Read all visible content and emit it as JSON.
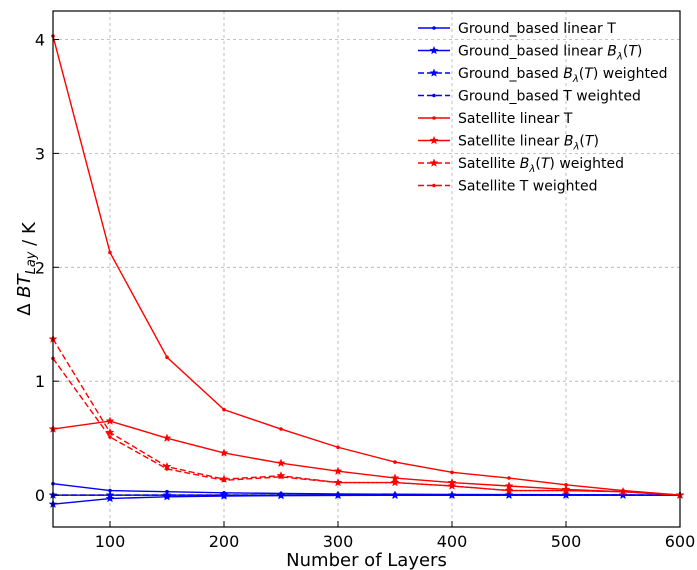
{
  "chart_data": {
    "type": "line",
    "xlabel": "Number of Layers",
    "ylabel": "Δ BT_Lay / K",
    "xlim": [
      50,
      600
    ],
    "ylim": [
      -0.28,
      4.25
    ],
    "xticks": [
      100,
      200,
      300,
      400,
      500,
      600
    ],
    "yticks": [
      0,
      1,
      2,
      3,
      4
    ],
    "grid": true,
    "zero_line": true,
    "legend_position": "top-right",
    "x": [
      50,
      100,
      150,
      200,
      250,
      300,
      350,
      400,
      450,
      500,
      550,
      600
    ],
    "series": [
      {
        "name": "Ground_based linear T",
        "color": "#0000ff",
        "dash": "solid",
        "marker": "dot",
        "values": [
          0.1,
          0.04,
          0.03,
          0.02,
          0.015,
          0.01,
          0.008,
          0.006,
          0.005,
          0.004,
          0.002,
          0.0
        ]
      },
      {
        "name": "Ground_based linear B_λ(T)",
        "color": "#0000ff",
        "dash": "solid",
        "marker": "star",
        "values": [
          -0.08,
          -0.03,
          -0.015,
          -0.008,
          -0.005,
          -0.003,
          -0.002,
          -0.002,
          -0.001,
          -0.001,
          -0.001,
          0.0
        ]
      },
      {
        "name": "Ground_based B_λ(T) weighted",
        "color": "#0000ff",
        "dash": "dashed",
        "marker": "star",
        "values": [
          0.0,
          0.0,
          0.0,
          0.0,
          0.0,
          0.0,
          0.0,
          0.0,
          0.0,
          0.0,
          0.0,
          0.0
        ]
      },
      {
        "name": "Ground_based T weighted",
        "color": "#0000ff",
        "dash": "dashed",
        "marker": "dot",
        "values": [
          0.0,
          0.0,
          0.0,
          0.0,
          0.0,
          0.0,
          0.0,
          0.0,
          0.0,
          0.0,
          0.0,
          0.0
        ]
      },
      {
        "name": "Satellite linear T",
        "color": "#ff0000",
        "dash": "solid",
        "marker": "dot",
        "values": [
          4.03,
          2.13,
          1.21,
          0.75,
          0.58,
          0.42,
          0.29,
          0.2,
          0.15,
          0.09,
          0.04,
          0.0
        ]
      },
      {
        "name": "Satellite linear B_λ(T)",
        "color": "#ff0000",
        "dash": "solid",
        "marker": "star",
        "values": [
          0.58,
          0.65,
          0.5,
          0.37,
          0.28,
          0.21,
          0.15,
          0.11,
          0.08,
          0.05,
          0.03,
          0.0
        ]
      },
      {
        "name": "Satellite B_λ(T) weighted",
        "color": "#ff0000",
        "dash": "dashed",
        "marker": "star",
        "values": [
          1.37,
          0.55,
          0.25,
          0.14,
          0.17,
          0.11,
          0.11,
          0.08,
          0.04,
          0.04,
          0.03,
          0.0
        ]
      },
      {
        "name": "Satellite T weighted",
        "color": "#ff0000",
        "dash": "dashed",
        "marker": "dot",
        "values": [
          1.2,
          0.51,
          0.23,
          0.13,
          0.16,
          0.11,
          0.11,
          0.08,
          0.04,
          0.04,
          0.03,
          0.0
        ]
      }
    ]
  }
}
